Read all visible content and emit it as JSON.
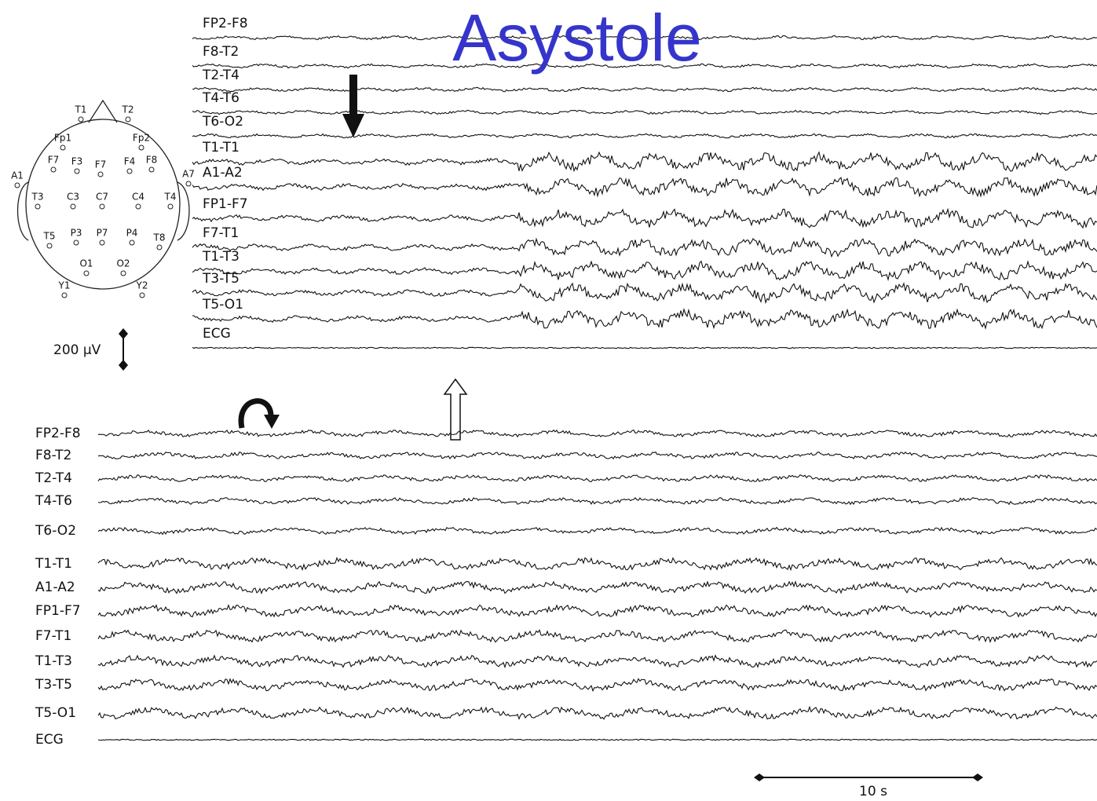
{
  "title": "Asystole",
  "top_channels": [
    "FP2-F8",
    "F8-T2",
    "T2-T4",
    "T4-T6",
    "T6-O2",
    "T1-T1",
    "A1-A2",
    "FP1-F7",
    "F7-T1",
    "T1-T3",
    "T3-T5",
    "T5-O1",
    "ECG"
  ],
  "bottom_channels": [
    "FP2-F8",
    "F8-T2",
    "T2-T4",
    "T4-T6",
    "T6-O2",
    "T1-T1",
    "A1-A2",
    "FP1-F7",
    "F7-T1",
    "T1-T3",
    "T3-T5",
    "T5-O1",
    "ECG"
  ],
  "electrodes": [
    "T1",
    "T2",
    "Fp1",
    "Fp2",
    "F7",
    "F3",
    "F7",
    "F4",
    "F8",
    "A1",
    "A7",
    "T3",
    "C3",
    "C7",
    "C4",
    "T4",
    "T5",
    "P3",
    "P7",
    "P4",
    "T8",
    "O1",
    "O2",
    "Y1",
    "Y2"
  ],
  "amplitude_scale": "200 µV",
  "time_scale": "10 s"
}
